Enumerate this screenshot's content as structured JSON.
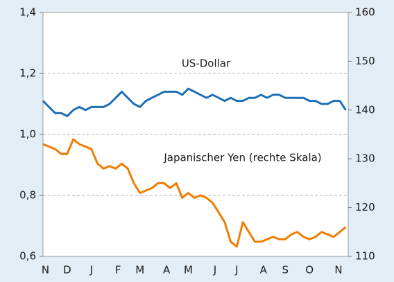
{
  "chart_data": {
    "type": "line",
    "annotations": [
      "US-Dollar",
      "Japanischer Yen (rechte Skala)"
    ],
    "x": [
      0,
      0.25,
      0.5,
      0.75,
      1,
      1.25,
      1.5,
      1.75,
      2,
      2.25,
      2.5,
      2.75,
      3,
      3.25,
      3.5,
      3.75,
      4,
      4.25,
      4.5,
      4.75,
      5,
      5.25,
      5.5,
      5.75,
      6,
      6.25,
      6.5,
      6.75,
      7,
      7.25,
      7.5,
      7.75,
      8,
      8.25,
      8.5,
      8.75,
      9,
      9.25,
      9.5,
      9.75,
      10,
      10.25,
      10.5,
      10.75,
      11,
      11.25,
      11.5,
      11.75,
      12,
      12.25,
      12.5
    ],
    "xlim": [
      0,
      12.6
    ],
    "xticks": [
      {
        "value": 0.1,
        "label": "N"
      },
      {
        "value": 1,
        "label": "D"
      },
      {
        "value": 2,
        "label": "J"
      },
      {
        "value": 3.1,
        "label": "F"
      },
      {
        "value": 4,
        "label": "M"
      },
      {
        "value": 5.1,
        "label": "A"
      },
      {
        "value": 6,
        "label": "M"
      },
      {
        "value": 7.1,
        "label": "J"
      },
      {
        "value": 8,
        "label": "J"
      },
      {
        "value": 9.1,
        "label": "A"
      },
      {
        "value": 10,
        "label": "S"
      },
      {
        "value": 11,
        "label": "O"
      },
      {
        "value": 12.2,
        "label": "N"
      }
    ],
    "ylim": [
      0.6,
      1.4
    ],
    "yticks": [
      {
        "value": 0.6,
        "label": "0,6"
      },
      {
        "value": 0.8,
        "label": "0,8"
      },
      {
        "value": 1.0,
        "label": "1,0"
      },
      {
        "value": 1.2,
        "label": "1,2"
      },
      {
        "value": 1.4,
        "label": "1,4"
      }
    ],
    "y2lim": [
      110,
      160
    ],
    "y2ticks": [
      110,
      120,
      130,
      140,
      150,
      160
    ],
    "grid": true,
    "series": [
      {
        "name": "US-Dollar",
        "color": "#1f6fb5",
        "axis": "y",
        "values": [
          1.11,
          1.09,
          1.07,
          1.07,
          1.06,
          1.08,
          1.09,
          1.08,
          1.09,
          1.09,
          1.09,
          1.1,
          1.12,
          1.14,
          1.12,
          1.1,
          1.09,
          1.11,
          1.12,
          1.13,
          1.14,
          1.14,
          1.14,
          1.13,
          1.15,
          1.14,
          1.13,
          1.12,
          1.13,
          1.12,
          1.11,
          1.12,
          1.11,
          1.11,
          1.12,
          1.12,
          1.13,
          1.12,
          1.13,
          1.13,
          1.12,
          1.12,
          1.12,
          1.12,
          1.11,
          1.11,
          1.1,
          1.1,
          1.11,
          1.11,
          1.08
        ]
      },
      {
        "name": "Japanischer Yen",
        "color": "#f07d00",
        "axis": "y2",
        "values": [
          133,
          132.5,
          132,
          131,
          131,
          134,
          133,
          132.5,
          132,
          129,
          128,
          128.5,
          128,
          129,
          128,
          125,
          123,
          123.5,
          124,
          125,
          125,
          124,
          125,
          122,
          123,
          122,
          122.5,
          122,
          121,
          119,
          117,
          113,
          112,
          117,
          115,
          113,
          113,
          113.5,
          114,
          113.5,
          113.5,
          114.5,
          115,
          114,
          113.5,
          114,
          115,
          114.5,
          114,
          115,
          116
        ]
      }
    ]
  }
}
